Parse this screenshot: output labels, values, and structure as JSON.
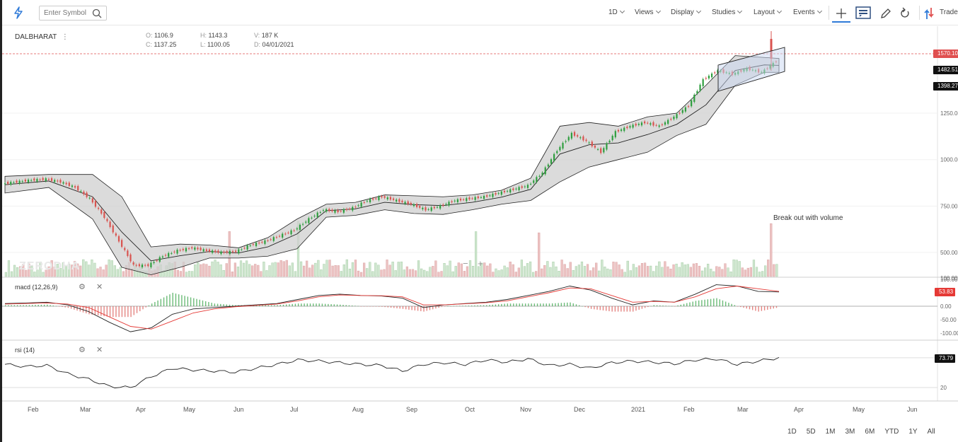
{
  "toolbar": {
    "search_placeholder": "Enter Symbol",
    "interval": "1D",
    "views": "Views",
    "display": "Display",
    "studies": "Studies",
    "layout": "Layout",
    "events": "Events",
    "trade": "Trade"
  },
  "symbol": "DALBHARAT",
  "ohlc": {
    "o_label": "O:",
    "o": "1106.9",
    "h_label": "H:",
    "h": "1143.3",
    "v_label": "V:",
    "v": "187 K",
    "c_label": "C:",
    "c": "1137.25",
    "l_label": "L:",
    "l": "1100.05",
    "d_label": "D:",
    "d": "04/01/2021"
  },
  "annotation": "Break out with volume",
  "watermark": "ZERODHA",
  "zoom": {
    "minus": "−",
    "plus": "+"
  },
  "price_tags": [
    {
      "label": "1570.10",
      "color": "#e05050"
    },
    {
      "label": "1482.51",
      "color": "#111111"
    },
    {
      "label": "1398.27",
      "color": "#111111"
    }
  ],
  "macd": {
    "label": "macd (12,26,9)",
    "value": "53.83",
    "value_color": "#e53935"
  },
  "rsi": {
    "label": "rsi (14)",
    "value": "73.79"
  },
  "range_buttons": [
    "1D",
    "5D",
    "1M",
    "3M",
    "6M",
    "YTD",
    "1Y",
    "All"
  ],
  "colors": {
    "up": "#2e9e3e",
    "down": "#d9534f",
    "band_fill": "#cfcfcf",
    "vol_up": "#cfe6cf",
    "vol_down": "#ecc2c2",
    "signal": "#e53935"
  },
  "chart_data": [
    {
      "type": "candlestick",
      "name": "price",
      "x_ticks": [
        "Feb",
        "Mar",
        "Apr",
        "May",
        "Jun",
        "Jul",
        "Aug",
        "Sep",
        "Oct",
        "Nov",
        "Dec",
        "2021",
        "Feb",
        "Mar",
        "Apr",
        "May",
        "Jun"
      ],
      "y_ticks": [
        "1250.00",
        "1000.00",
        "750.00",
        "500.00",
        "100.00"
      ],
      "close_series": [
        {
          "t": 0,
          "v": 870
        },
        {
          "t": 1,
          "v": 880
        },
        {
          "t": 2,
          "v": 890
        },
        {
          "t": 3,
          "v": 895
        },
        {
          "t": 4,
          "v": 880
        },
        {
          "t": 5,
          "v": 850
        },
        {
          "t": 6,
          "v": 790
        },
        {
          "t": 7,
          "v": 690
        },
        {
          "t": 8,
          "v": 560
        },
        {
          "t": 9,
          "v": 430
        },
        {
          "t": 10,
          "v": 430
        },
        {
          "t": 11,
          "v": 480
        },
        {
          "t": 12,
          "v": 510
        },
        {
          "t": 13,
          "v": 525
        },
        {
          "t": 14,
          "v": 510
        },
        {
          "t": 15,
          "v": 500
        },
        {
          "t": 16,
          "v": 505
        },
        {
          "t": 17,
          "v": 540
        },
        {
          "t": 18,
          "v": 560
        },
        {
          "t": 19,
          "v": 590
        },
        {
          "t": 20,
          "v": 620
        },
        {
          "t": 21,
          "v": 680
        },
        {
          "t": 22,
          "v": 730
        },
        {
          "t": 23,
          "v": 720
        },
        {
          "t": 24,
          "v": 740
        },
        {
          "t": 25,
          "v": 780
        },
        {
          "t": 26,
          "v": 800
        },
        {
          "t": 27,
          "v": 780
        },
        {
          "t": 28,
          "v": 760
        },
        {
          "t": 29,
          "v": 730
        },
        {
          "t": 30,
          "v": 750
        },
        {
          "t": 31,
          "v": 780
        },
        {
          "t": 32,
          "v": 790
        },
        {
          "t": 33,
          "v": 800
        },
        {
          "t": 34,
          "v": 820
        },
        {
          "t": 35,
          "v": 840
        },
        {
          "t": 36,
          "v": 860
        },
        {
          "t": 37,
          "v": 930
        },
        {
          "t": 38,
          "v": 1050
        },
        {
          "t": 39,
          "v": 1140
        },
        {
          "t": 40,
          "v": 1100
        },
        {
          "t": 41,
          "v": 1040
        },
        {
          "t": 42,
          "v": 1150
        },
        {
          "t": 43,
          "v": 1180
        },
        {
          "t": 44,
          "v": 1200
        },
        {
          "t": 45,
          "v": 1180
        },
        {
          "t": 46,
          "v": 1230
        },
        {
          "t": 47,
          "v": 1290
        },
        {
          "t": 48,
          "v": 1430
        },
        {
          "t": 49,
          "v": 1480
        },
        {
          "t": 50,
          "v": 1460
        },
        {
          "t": 51,
          "v": 1490
        },
        {
          "t": 52,
          "v": 1470
        },
        {
          "t": 53,
          "v": 1530
        }
      ],
      "bollinger_upper": [
        {
          "t": 0,
          "v": 910
        },
        {
          "t": 3,
          "v": 920
        },
        {
          "t": 6,
          "v": 920
        },
        {
          "t": 8,
          "v": 800
        },
        {
          "t": 10,
          "v": 530
        },
        {
          "t": 12,
          "v": 545
        },
        {
          "t": 14,
          "v": 540
        },
        {
          "t": 16,
          "v": 525
        },
        {
          "t": 18,
          "v": 580
        },
        {
          "t": 20,
          "v": 680
        },
        {
          "t": 22,
          "v": 760
        },
        {
          "t": 24,
          "v": 770
        },
        {
          "t": 26,
          "v": 810
        },
        {
          "t": 28,
          "v": 805
        },
        {
          "t": 30,
          "v": 800
        },
        {
          "t": 32,
          "v": 810
        },
        {
          "t": 34,
          "v": 835
        },
        {
          "t": 36,
          "v": 900
        },
        {
          "t": 38,
          "v": 1180
        },
        {
          "t": 40,
          "v": 1200
        },
        {
          "t": 42,
          "v": 1180
        },
        {
          "t": 44,
          "v": 1230
        },
        {
          "t": 46,
          "v": 1250
        },
        {
          "t": 48,
          "v": 1400
        },
        {
          "t": 50,
          "v": 1560
        },
        {
          "t": 52,
          "v": 1550
        },
        {
          "t": 53,
          "v": 1545
        }
      ],
      "bollinger_lower": [
        {
          "t": 0,
          "v": 820
        },
        {
          "t": 3,
          "v": 850
        },
        {
          "t": 6,
          "v": 680
        },
        {
          "t": 8,
          "v": 420
        },
        {
          "t": 10,
          "v": 380
        },
        {
          "t": 12,
          "v": 420
        },
        {
          "t": 14,
          "v": 470
        },
        {
          "t": 16,
          "v": 470
        },
        {
          "t": 18,
          "v": 480
        },
        {
          "t": 20,
          "v": 520
        },
        {
          "t": 22,
          "v": 690
        },
        {
          "t": 24,
          "v": 700
        },
        {
          "t": 26,
          "v": 730
        },
        {
          "t": 28,
          "v": 710
        },
        {
          "t": 30,
          "v": 705
        },
        {
          "t": 32,
          "v": 730
        },
        {
          "t": 34,
          "v": 760
        },
        {
          "t": 36,
          "v": 780
        },
        {
          "t": 38,
          "v": 880
        },
        {
          "t": 40,
          "v": 960
        },
        {
          "t": 42,
          "v": 1000
        },
        {
          "t": 44,
          "v": 1040
        },
        {
          "t": 46,
          "v": 1130
        },
        {
          "t": 48,
          "v": 1190
        },
        {
          "t": 50,
          "v": 1400
        },
        {
          "t": 52,
          "v": 1470
        },
        {
          "t": 53,
          "v": 1470
        }
      ]
    },
    {
      "type": "line",
      "name": "macd (12,26,9)",
      "y_ticks": [
        "100.00",
        "0.00",
        "-50.00",
        "-100.00"
      ],
      "series": [
        {
          "name": "macd",
          "values": [
            10,
            12,
            15,
            5,
            -20,
            -60,
            -95,
            -80,
            -30,
            -10,
            -5,
            0,
            5,
            10,
            25,
            40,
            45,
            40,
            38,
            30,
            -5,
            5,
            10,
            15,
            25,
            40,
            55,
            75,
            60,
            30,
            5,
            20,
            15,
            45,
            80,
            75,
            55,
            53
          ]
        },
        {
          "name": "signal",
          "values": [
            8,
            10,
            12,
            8,
            -5,
            -40,
            -75,
            -85,
            -55,
            -25,
            -10,
            -2,
            3,
            8,
            20,
            35,
            42,
            40,
            39,
            35,
            5,
            5,
            9,
            13,
            20,
            35,
            50,
            68,
            65,
            40,
            15,
            18,
            15,
            35,
            65,
            75,
            65,
            55
          ]
        }
      ]
    },
    {
      "type": "line",
      "name": "rsi (14)",
      "y_ticks": [
        "20"
      ],
      "series": [
        {
          "name": "rsi",
          "values": [
            62,
            58,
            60,
            45,
            35,
            22,
            20,
            40,
            55,
            52,
            50,
            48,
            55,
            62,
            70,
            68,
            65,
            62,
            60,
            50,
            62,
            65,
            62,
            70,
            66,
            72,
            60,
            62,
            55,
            65,
            68,
            66,
            63,
            70,
            72,
            62,
            68,
            74
          ]
        }
      ]
    }
  ]
}
